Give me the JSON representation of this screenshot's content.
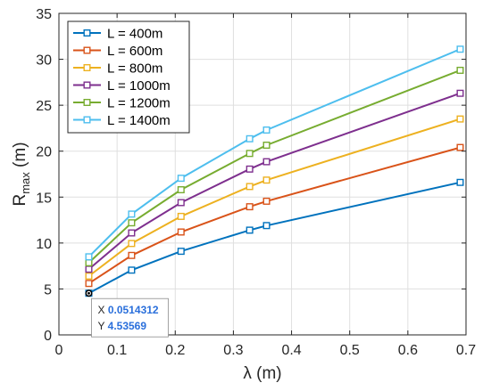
{
  "chart_data": {
    "type": "line",
    "x": [
      0.0514312,
      0.125,
      0.21,
      0.328,
      0.357,
      0.69
    ],
    "series": [
      {
        "name": "L = 400m",
        "color": "#0072BD",
        "values": [
          4.53569,
          7.05,
          9.1,
          11.4,
          11.9,
          16.6
        ]
      },
      {
        "name": "L = 600m",
        "color": "#D95319",
        "values": [
          5.6,
          8.65,
          11.2,
          13.95,
          14.55,
          20.4
        ]
      },
      {
        "name": "L = 800m",
        "color": "#EDB120",
        "values": [
          6.4,
          9.95,
          12.9,
          16.15,
          16.85,
          23.5
        ]
      },
      {
        "name": "L = 1000m",
        "color": "#7E2F8E",
        "values": [
          7.15,
          11.1,
          14.4,
          18.05,
          18.85,
          26.3
        ]
      },
      {
        "name": "L = 1200m",
        "color": "#77AC30",
        "values": [
          7.85,
          12.2,
          15.8,
          19.75,
          20.65,
          28.8
        ]
      },
      {
        "name": "L = 1400m",
        "color": "#4DBEEE",
        "values": [
          8.5,
          13.15,
          17.05,
          21.35,
          22.3,
          31.1
        ]
      }
    ],
    "xlim": [
      0,
      0.7
    ],
    "ylim": [
      0,
      35
    ],
    "xticks": [
      "0",
      "0.1",
      "0.2",
      "0.3",
      "0.4",
      "0.5",
      "0.6",
      "0.7"
    ],
    "yticks": [
      "0",
      "5",
      "10",
      "15",
      "20",
      "25",
      "30",
      "35"
    ],
    "xlabel": "λ (m)",
    "ylabel_main": "R",
    "ylabel_sub": "max",
    "ylabel_unit": " (m)",
    "grid": true,
    "legend_position": "top-left",
    "datatip": {
      "x_label": "X",
      "x_value": "0.0514312",
      "y_label": "Y",
      "y_value": "4.53569",
      "x": 0.0514312,
      "y": 4.53569
    }
  }
}
